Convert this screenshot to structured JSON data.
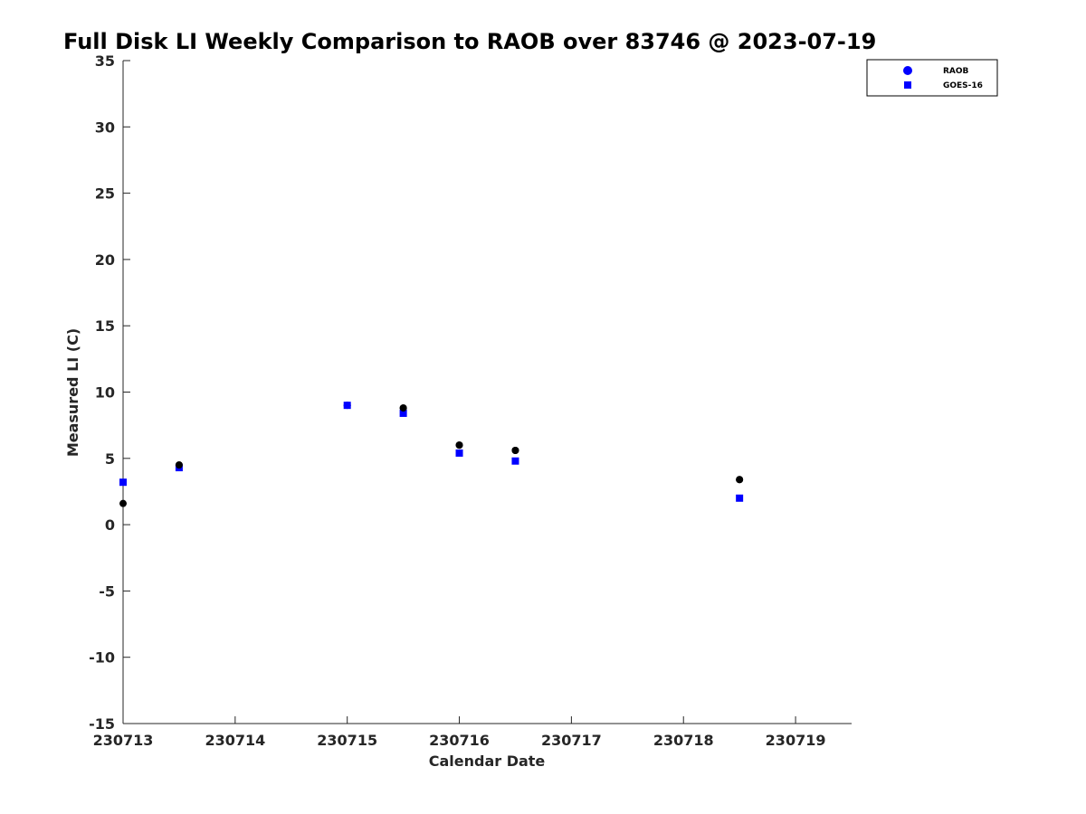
{
  "chart_data": {
    "type": "scatter",
    "title": "Full Disk LI Weekly Comparison to RAOB over 83746 @ 2023-07-19",
    "xlabel": "Calendar Date",
    "ylabel": "Measured LI (C)",
    "x_ticks": [
      "230713",
      "230714",
      "230715",
      "230716",
      "230717",
      "230718",
      "230719"
    ],
    "y_ticks": [
      "35",
      "30",
      "25",
      "20",
      "15",
      "10",
      "5",
      "0",
      "-5",
      "-10",
      "-15"
    ],
    "xlim": [
      "2023-07-13",
      "2023-07-19 12:00"
    ],
    "ylim": [
      -15,
      35
    ],
    "grid": false,
    "legend_position": "top-right",
    "series": [
      {
        "name": "RAOB",
        "marker": "circle",
        "color": "#000000",
        "legend_color": "#0000ff",
        "x": [
          "2023-07-13 00:00",
          "2023-07-13 12:00",
          "2023-07-15 00:00",
          "2023-07-15 12:00",
          "2023-07-16 00:00",
          "2023-07-16 12:00",
          "2023-07-18 12:00"
        ],
        "y": [
          1.6,
          4.5,
          9.0,
          8.8,
          6.0,
          5.6,
          3.4
        ]
      },
      {
        "name": "GOES-16",
        "marker": "square",
        "color": "#0000ff",
        "legend_color": "#0000ff",
        "x": [
          "2023-07-13 00:00",
          "2023-07-13 12:00",
          "2023-07-15 00:00",
          "2023-07-15 12:00",
          "2023-07-16 00:00",
          "2023-07-16 12:00",
          "2023-07-18 12:00"
        ],
        "y": [
          3.2,
          4.3,
          9.0,
          8.4,
          5.4,
          4.8,
          2.0
        ]
      }
    ]
  }
}
